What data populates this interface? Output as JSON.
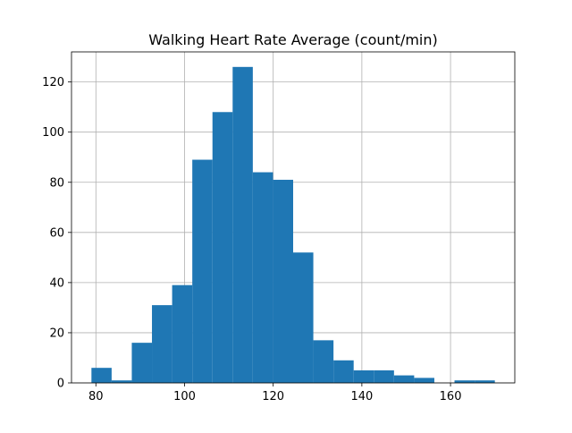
{
  "colors": {
    "bar": "#1f77b4",
    "grid": "#b0b0b0",
    "axis": "#000000",
    "background": "#ffffff"
  },
  "chart_data": {
    "type": "bar",
    "title": "Walking Heart Rate Average (count/min)",
    "xlabel": "",
    "ylabel": "",
    "grid": true,
    "legend": "none",
    "xlim": [
      74.5,
      174.5
    ],
    "ylim": [
      0,
      132
    ],
    "xticks": [
      80,
      100,
      120,
      140,
      160
    ],
    "yticks": [
      0,
      20,
      40,
      60,
      80,
      100,
      120
    ],
    "bins": [
      {
        "x0": 79,
        "x1": 83.55,
        "count": 6
      },
      {
        "x0": 83.55,
        "x1": 88.1,
        "count": 1
      },
      {
        "x0": 88.1,
        "x1": 92.65,
        "count": 16
      },
      {
        "x0": 92.65,
        "x1": 97.2,
        "count": 31
      },
      {
        "x0": 97.2,
        "x1": 101.75,
        "count": 39
      },
      {
        "x0": 101.75,
        "x1": 106.3,
        "count": 89
      },
      {
        "x0": 106.3,
        "x1": 110.85,
        "count": 108
      },
      {
        "x0": 110.85,
        "x1": 115.4,
        "count": 126
      },
      {
        "x0": 115.4,
        "x1": 119.95,
        "count": 84
      },
      {
        "x0": 119.95,
        "x1": 124.5,
        "count": 81
      },
      {
        "x0": 124.5,
        "x1": 129.05,
        "count": 52
      },
      {
        "x0": 129.05,
        "x1": 133.6,
        "count": 17
      },
      {
        "x0": 133.6,
        "x1": 138.15,
        "count": 9
      },
      {
        "x0": 138.15,
        "x1": 142.7,
        "count": 5
      },
      {
        "x0": 142.7,
        "x1": 147.25,
        "count": 5
      },
      {
        "x0": 147.25,
        "x1": 151.8,
        "count": 3
      },
      {
        "x0": 151.8,
        "x1": 156.35,
        "count": 2
      },
      {
        "x0": 156.35,
        "x1": 160.9,
        "count": 0
      },
      {
        "x0": 160.9,
        "x1": 165.45,
        "count": 1
      },
      {
        "x0": 165.45,
        "x1": 170,
        "count": 1
      }
    ]
  }
}
